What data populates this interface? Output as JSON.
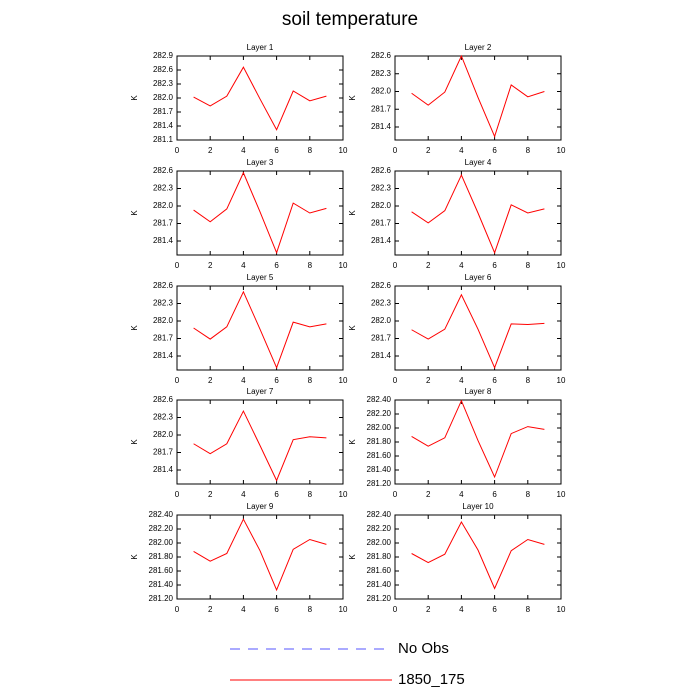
{
  "title": "soil temperature",
  "legend": [
    {
      "name": "No Obs",
      "color": "#5555ff",
      "dashed": true
    },
    {
      "name": "1850_175",
      "color": "#ff0000",
      "dashed": false
    }
  ],
  "chart_data": [
    {
      "type": "line",
      "title": "Layer 1",
      "ylabel": "K",
      "x": [
        1,
        2,
        3,
        4,
        5,
        6,
        7,
        8,
        9
      ],
      "xlim": [
        0,
        10
      ],
      "xticks": [
        0,
        2,
        4,
        6,
        8,
        10
      ],
      "ylim": [
        281.1,
        282.9
      ],
      "yticks": [
        281.1,
        281.4,
        281.7,
        {
          "value": 282,
          "label": "282.0"
        },
        282.3,
        282.6,
        282.9
      ],
      "series": [
        {
          "color": "#ff0000",
          "values": [
            282.02,
            281.83,
            282.04,
            282.66,
            281.98,
            281.32,
            282.15,
            281.94,
            282.04
          ]
        }
      ]
    },
    {
      "type": "line",
      "title": "Layer 2",
      "ylabel": "K",
      "x": [
        1,
        2,
        3,
        4,
        5,
        6,
        7,
        8,
        9
      ],
      "xlim": [
        0,
        10
      ],
      "xticks": [
        0,
        2,
        4,
        6,
        8,
        10
      ],
      "ylim": [
        281.18,
        282.6
      ],
      "yticks": [
        281.4,
        281.7,
        {
          "value": 282,
          "label": "282.0"
        },
        282.3,
        282.6
      ],
      "series": [
        {
          "color": "#ff0000",
          "values": [
            281.97,
            281.77,
            281.99,
            282.6,
            281.9,
            281.24,
            282.11,
            281.91,
            282.0
          ]
        }
      ]
    },
    {
      "type": "line",
      "title": "Layer 3",
      "ylabel": "K",
      "x": [
        1,
        2,
        3,
        4,
        5,
        6,
        7,
        8,
        9
      ],
      "xlim": [
        0,
        10
      ],
      "xticks": [
        0,
        2,
        4,
        6,
        8,
        10
      ],
      "ylim": [
        281.16,
        282.6
      ],
      "yticks": [
        281.4,
        281.7,
        {
          "value": 282,
          "label": "282.0"
        },
        282.3,
        282.6
      ],
      "series": [
        {
          "color": "#ff0000",
          "values": [
            281.93,
            281.73,
            281.95,
            282.57,
            281.9,
            281.2,
            282.05,
            281.88,
            281.96
          ]
        }
      ]
    },
    {
      "type": "line",
      "title": "Layer 4",
      "ylabel": "K",
      "x": [
        1,
        2,
        3,
        4,
        5,
        6,
        7,
        8,
        9
      ],
      "xlim": [
        0,
        10
      ],
      "xticks": [
        0,
        2,
        4,
        6,
        8,
        10
      ],
      "ylim": [
        281.16,
        282.6
      ],
      "yticks": [
        281.4,
        281.7,
        {
          "value": 282,
          "label": "282.0"
        },
        282.3,
        282.6
      ],
      "series": [
        {
          "color": "#ff0000",
          "values": [
            281.9,
            281.71,
            281.92,
            282.53,
            281.88,
            281.2,
            282.02,
            281.88,
            281.95
          ]
        }
      ]
    },
    {
      "type": "line",
      "title": "Layer 5",
      "ylabel": "K",
      "x": [
        1,
        2,
        3,
        4,
        5,
        6,
        7,
        8,
        9
      ],
      "xlim": [
        0,
        10
      ],
      "xticks": [
        0,
        2,
        4,
        6,
        8,
        10
      ],
      "ylim": [
        281.16,
        282.6
      ],
      "yticks": [
        281.4,
        281.7,
        {
          "value": 282,
          "label": "282.0"
        },
        282.3,
        282.6
      ],
      "series": [
        {
          "color": "#ff0000",
          "values": [
            281.88,
            281.69,
            281.9,
            282.5,
            281.86,
            281.2,
            281.98,
            281.9,
            281.95
          ]
        }
      ]
    },
    {
      "type": "line",
      "title": "Layer 6",
      "ylabel": "K",
      "x": [
        1,
        2,
        3,
        4,
        5,
        6,
        7,
        8,
        9
      ],
      "xlim": [
        0,
        10
      ],
      "xticks": [
        0,
        2,
        4,
        6,
        8,
        10
      ],
      "ylim": [
        281.16,
        282.6
      ],
      "yticks": [
        281.4,
        281.7,
        {
          "value": 282,
          "label": "282.0"
        },
        282.3,
        282.6
      ],
      "series": [
        {
          "color": "#ff0000",
          "values": [
            281.85,
            281.69,
            281.86,
            282.45,
            281.86,
            281.2,
            281.95,
            281.94,
            281.96
          ]
        }
      ]
    },
    {
      "type": "line",
      "title": "Layer 7",
      "ylabel": "K",
      "x": [
        1,
        2,
        3,
        4,
        5,
        6,
        7,
        8,
        9
      ],
      "xlim": [
        0,
        10
      ],
      "xticks": [
        0,
        2,
        4,
        6,
        8,
        10
      ],
      "ylim": [
        281.16,
        282.6
      ],
      "yticks": [
        281.4,
        281.7,
        {
          "value": 282,
          "label": "282.0"
        },
        282.3,
        282.6
      ],
      "series": [
        {
          "color": "#ff0000",
          "values": [
            281.85,
            281.68,
            281.85,
            282.41,
            281.82,
            281.22,
            281.92,
            281.97,
            281.95
          ]
        }
      ]
    },
    {
      "type": "line",
      "title": "Layer 8",
      "ylabel": "K",
      "x": [
        1,
        2,
        3,
        4,
        5,
        6,
        7,
        8,
        9
      ],
      "xlim": [
        0,
        10
      ],
      "xticks": [
        0,
        2,
        4,
        6,
        8,
        10
      ],
      "ylim": [
        281.2,
        282.4
      ],
      "yticks": [
        {
          "value": 281.2,
          "label": "281.20"
        },
        {
          "value": 281.4,
          "label": "281.40"
        },
        {
          "value": 281.6,
          "label": "281.60"
        },
        {
          "value": 281.8,
          "label": "281.80"
        },
        {
          "value": 282,
          "label": "282.00"
        },
        {
          "value": 282.2,
          "label": "282.20"
        },
        {
          "value": 282.4,
          "label": "282.40"
        }
      ],
      "series": [
        {
          "color": "#ff0000",
          "values": [
            281.88,
            281.74,
            281.86,
            282.39,
            281.82,
            281.3,
            281.92,
            282.02,
            281.98
          ]
        }
      ]
    },
    {
      "type": "line",
      "title": "Layer 9",
      "ylabel": "K",
      "x": [
        1,
        2,
        3,
        4,
        5,
        6,
        7,
        8,
        9
      ],
      "xlim": [
        0,
        10
      ],
      "xticks": [
        0,
        2,
        4,
        6,
        8,
        10
      ],
      "ylim": [
        281.2,
        282.4
      ],
      "yticks": [
        {
          "value": 281.2,
          "label": "281.20"
        },
        {
          "value": 281.4,
          "label": "281.40"
        },
        {
          "value": 281.6,
          "label": "281.60"
        },
        {
          "value": 281.8,
          "label": "281.80"
        },
        {
          "value": 282,
          "label": "282.00"
        },
        {
          "value": 282.2,
          "label": "282.20"
        },
        {
          "value": 282.4,
          "label": "282.40"
        }
      ],
      "series": [
        {
          "color": "#ff0000",
          "values": [
            281.88,
            281.74,
            281.85,
            282.34,
            281.89,
            281.33,
            281.91,
            282.05,
            281.98
          ]
        }
      ]
    },
    {
      "type": "line",
      "title": "Layer 10",
      "ylabel": "K",
      "x": [
        1,
        2,
        3,
        4,
        5,
        6,
        7,
        8,
        9
      ],
      "xlim": [
        0,
        10
      ],
      "xticks": [
        0,
        2,
        4,
        6,
        8,
        10
      ],
      "ylim": [
        281.2,
        282.4
      ],
      "yticks": [
        {
          "value": 281.2,
          "label": "281.20"
        },
        {
          "value": 281.4,
          "label": "281.40"
        },
        {
          "value": 281.6,
          "label": "281.60"
        },
        {
          "value": 281.8,
          "label": "281.80"
        },
        {
          "value": 282,
          "label": "282.00"
        },
        {
          "value": 282.2,
          "label": "282.20"
        },
        {
          "value": 282.4,
          "label": "282.40"
        }
      ],
      "series": [
        {
          "color": "#ff0000",
          "values": [
            281.85,
            281.72,
            281.84,
            282.3,
            281.9,
            281.35,
            281.89,
            282.05,
            281.98
          ]
        }
      ]
    }
  ]
}
